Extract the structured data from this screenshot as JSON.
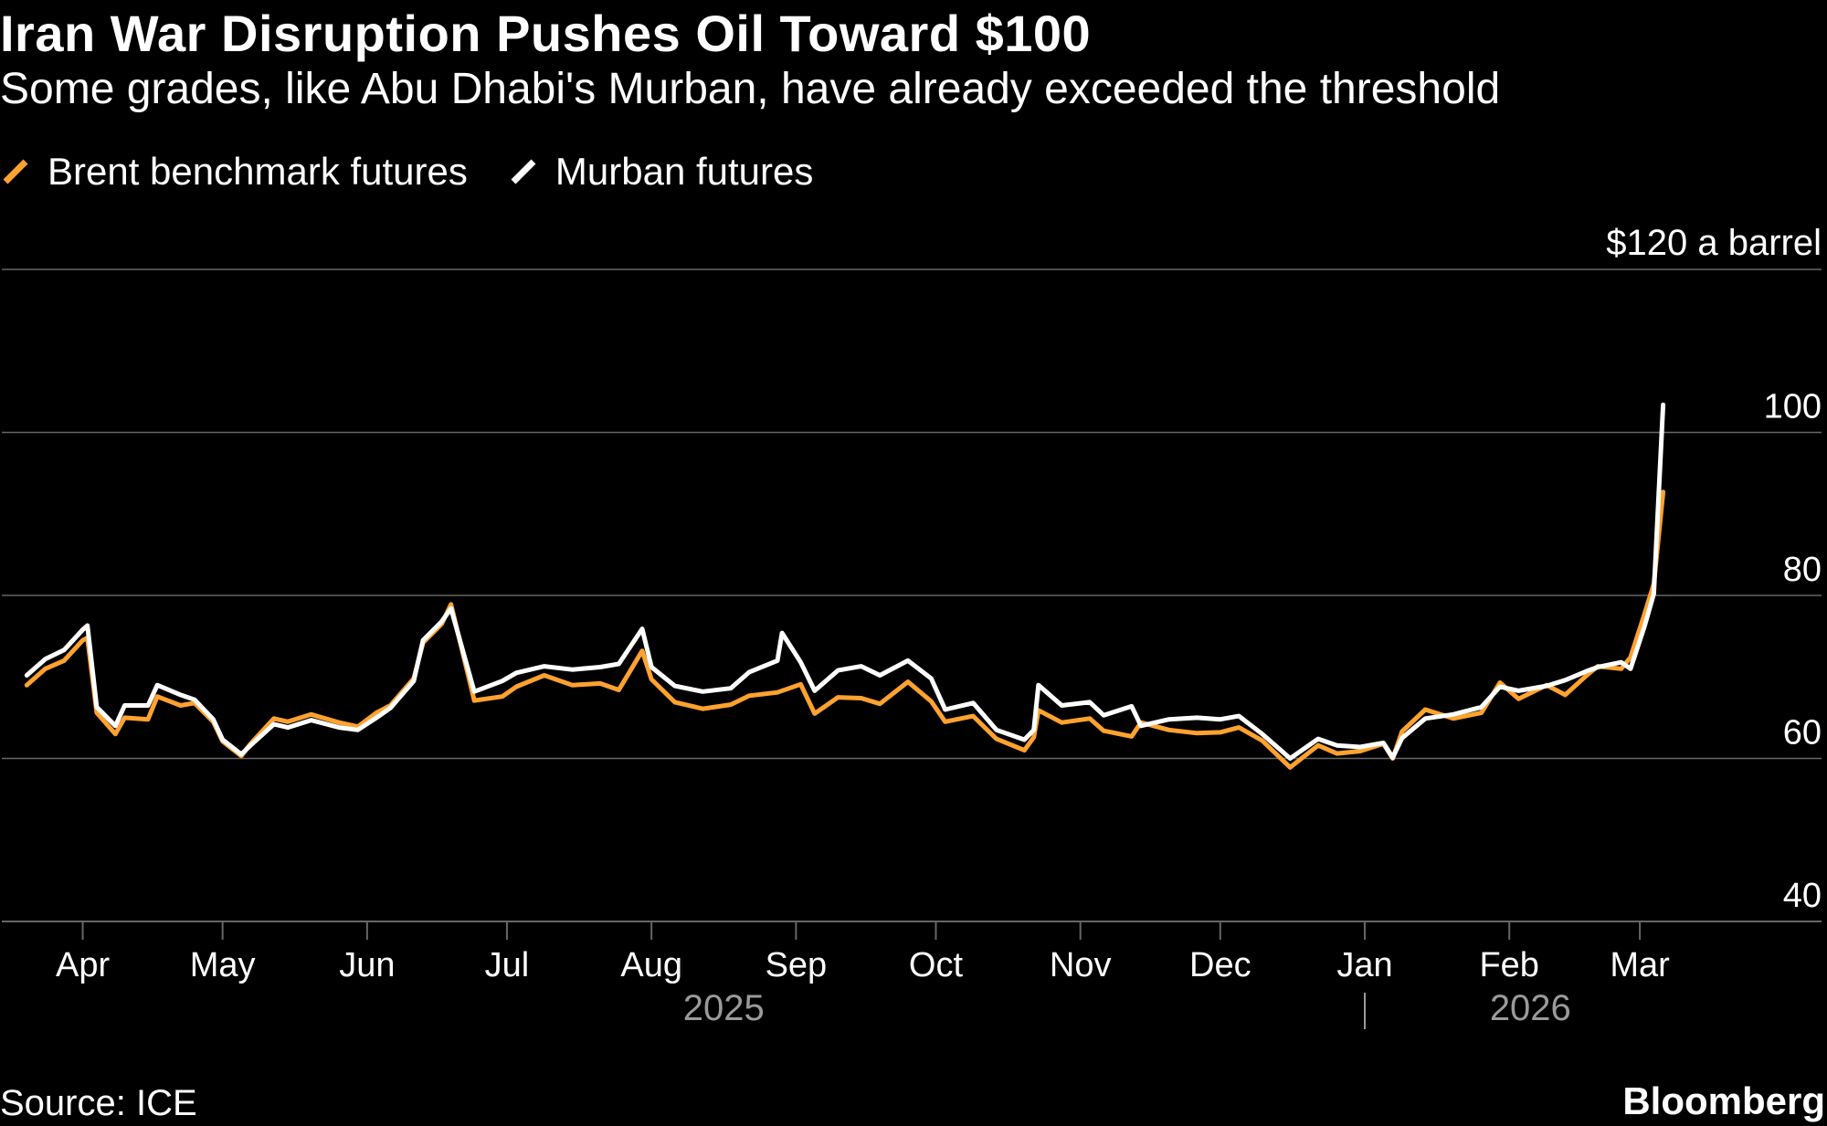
{
  "title": "Iran War Disruption Pushes Oil Toward $100",
  "subtitle": "Some grades, like Abu Dhabi's Murban, have already exceeded the threshold",
  "source": "Source: ICE",
  "brand": "Bloomberg",
  "colors": {
    "background": "#000000",
    "brent": "#ffa22e",
    "murban": "#ffffff",
    "grid": "#666666",
    "year_label": "#9a9a9a"
  },
  "chart_data": {
    "type": "line",
    "y_unit_label": "$120 a barrel",
    "ylim": [
      40,
      120
    ],
    "y_ticks": [
      40,
      60,
      80,
      100,
      120
    ],
    "y_tick_labels": [
      "40",
      "60",
      "80",
      "100",
      "$120 a barrel"
    ],
    "xlim": [
      "2025-03-17",
      "2026-03-29"
    ],
    "x_ticks": [
      "2025-04-01",
      "2025-05-01",
      "2025-06-01",
      "2025-07-01",
      "2025-08-01",
      "2025-09-01",
      "2025-10-01",
      "2025-11-01",
      "2025-12-01",
      "2026-01-01",
      "2026-02-01",
      "2026-03-01"
    ],
    "x_tick_labels": [
      "Apr",
      "May",
      "Jun",
      "Jul",
      "Aug",
      "Sep",
      "Oct",
      "Nov",
      "Dec",
      "Jan",
      "Feb",
      "Mar"
    ],
    "year_labels": [
      "2025",
      "2026"
    ],
    "grid": "horizontal",
    "legend_position": "top-left",
    "series": [
      {
        "name": "Brent benchmark futures",
        "color": "#ffa22e",
        "points": [
          [
            "2025-03-20",
            69.0
          ],
          [
            "2025-03-24",
            71.0
          ],
          [
            "2025-03-28",
            72.0
          ],
          [
            "2025-04-01",
            74.5
          ],
          [
            "2025-04-02",
            74.8
          ],
          [
            "2025-04-04",
            65.6
          ],
          [
            "2025-04-08",
            63.0
          ],
          [
            "2025-04-10",
            65.0
          ],
          [
            "2025-04-15",
            64.8
          ],
          [
            "2025-04-17",
            67.6
          ],
          [
            "2025-04-22",
            66.5
          ],
          [
            "2025-04-25",
            66.8
          ],
          [
            "2025-04-29",
            64.5
          ],
          [
            "2025-05-01",
            62.1
          ],
          [
            "2025-05-05",
            60.3
          ],
          [
            "2025-05-07",
            61.8
          ],
          [
            "2025-05-12",
            64.9
          ],
          [
            "2025-05-15",
            64.5
          ],
          [
            "2025-05-20",
            65.4
          ],
          [
            "2025-05-26",
            64.4
          ],
          [
            "2025-05-30",
            63.9
          ],
          [
            "2025-06-03",
            65.6
          ],
          [
            "2025-06-06",
            66.5
          ],
          [
            "2025-06-11",
            69.8
          ],
          [
            "2025-06-13",
            74.2
          ],
          [
            "2025-06-17",
            76.5
          ],
          [
            "2025-06-19",
            78.9
          ],
          [
            "2025-06-24",
            67.1
          ],
          [
            "2025-06-30",
            67.6
          ],
          [
            "2025-07-03",
            68.8
          ],
          [
            "2025-07-09",
            70.2
          ],
          [
            "2025-07-15",
            69.0
          ],
          [
            "2025-07-21",
            69.2
          ],
          [
            "2025-07-25",
            68.4
          ],
          [
            "2025-07-30",
            73.2
          ],
          [
            "2025-08-01",
            69.7
          ],
          [
            "2025-08-06",
            66.9
          ],
          [
            "2025-08-12",
            66.1
          ],
          [
            "2025-08-18",
            66.6
          ],
          [
            "2025-08-22",
            67.7
          ],
          [
            "2025-08-28",
            68.1
          ],
          [
            "2025-09-02",
            69.1
          ],
          [
            "2025-09-05",
            65.5
          ],
          [
            "2025-09-10",
            67.5
          ],
          [
            "2025-09-15",
            67.4
          ],
          [
            "2025-09-19",
            66.7
          ],
          [
            "2025-09-25",
            69.4
          ],
          [
            "2025-09-30",
            67.0
          ],
          [
            "2025-10-03",
            64.5
          ],
          [
            "2025-10-09",
            65.2
          ],
          [
            "2025-10-14",
            62.4
          ],
          [
            "2025-10-20",
            61.0
          ],
          [
            "2025-10-22",
            62.6
          ],
          [
            "2025-10-23",
            65.9
          ],
          [
            "2025-10-28",
            64.4
          ],
          [
            "2025-11-03",
            64.9
          ],
          [
            "2025-11-06",
            63.4
          ],
          [
            "2025-11-12",
            62.7
          ],
          [
            "2025-11-14",
            64.4
          ],
          [
            "2025-11-20",
            63.5
          ],
          [
            "2025-11-26",
            63.1
          ],
          [
            "2025-12-01",
            63.2
          ],
          [
            "2025-12-05",
            63.8
          ],
          [
            "2025-12-10",
            62.2
          ],
          [
            "2025-12-16",
            58.9
          ],
          [
            "2025-12-22",
            61.6
          ],
          [
            "2025-12-26",
            60.6
          ],
          [
            "2025-12-31",
            60.9
          ],
          [
            "2026-01-05",
            61.8
          ],
          [
            "2026-01-07",
            60.0
          ],
          [
            "2026-01-09",
            63.3
          ],
          [
            "2026-01-14",
            66.0
          ],
          [
            "2026-01-20",
            64.9
          ],
          [
            "2026-01-26",
            65.6
          ],
          [
            "2026-01-30",
            69.3
          ],
          [
            "2026-02-03",
            67.3
          ],
          [
            "2026-02-09",
            69.0
          ],
          [
            "2026-02-13",
            67.8
          ],
          [
            "2026-02-18",
            70.4
          ],
          [
            "2026-02-20",
            71.3
          ],
          [
            "2026-02-25",
            71.0
          ],
          [
            "2026-02-27",
            72.4
          ],
          [
            "2026-03-02",
            77.7
          ],
          [
            "2026-03-04",
            81.4
          ],
          [
            "2026-03-06",
            92.7
          ]
        ]
      },
      {
        "name": "Murban futures",
        "color": "#ffffff",
        "points": [
          [
            "2025-03-20",
            70.2
          ],
          [
            "2025-03-24",
            72.2
          ],
          [
            "2025-03-28",
            73.3
          ],
          [
            "2025-04-01",
            75.8
          ],
          [
            "2025-04-02",
            76.3
          ],
          [
            "2025-04-04",
            66.3
          ],
          [
            "2025-04-08",
            64.0
          ],
          [
            "2025-04-10",
            66.5
          ],
          [
            "2025-04-15",
            66.5
          ],
          [
            "2025-04-17",
            69.0
          ],
          [
            "2025-04-22",
            67.8
          ],
          [
            "2025-04-25",
            67.2
          ],
          [
            "2025-04-29",
            64.8
          ],
          [
            "2025-05-01",
            62.3
          ],
          [
            "2025-05-05",
            60.5
          ],
          [
            "2025-05-07",
            61.6
          ],
          [
            "2025-05-12",
            64.2
          ],
          [
            "2025-05-15",
            63.8
          ],
          [
            "2025-05-20",
            64.7
          ],
          [
            "2025-05-26",
            63.8
          ],
          [
            "2025-05-30",
            63.5
          ],
          [
            "2025-06-03",
            65.0
          ],
          [
            "2025-06-06",
            66.2
          ],
          [
            "2025-06-11",
            69.5
          ],
          [
            "2025-06-13",
            74.5
          ],
          [
            "2025-06-17",
            76.8
          ],
          [
            "2025-06-19",
            78.4
          ],
          [
            "2025-06-24",
            68.2
          ],
          [
            "2025-06-30",
            69.5
          ],
          [
            "2025-07-03",
            70.5
          ],
          [
            "2025-07-09",
            71.3
          ],
          [
            "2025-07-15",
            70.9
          ],
          [
            "2025-07-21",
            71.2
          ],
          [
            "2025-07-25",
            71.6
          ],
          [
            "2025-07-30",
            75.9
          ],
          [
            "2025-08-01",
            71.2
          ],
          [
            "2025-08-06",
            68.9
          ],
          [
            "2025-08-12",
            68.2
          ],
          [
            "2025-08-18",
            68.6
          ],
          [
            "2025-08-22",
            70.6
          ],
          [
            "2025-08-28",
            72.0
          ],
          [
            "2025-08-29",
            75.4
          ],
          [
            "2025-09-02",
            71.8
          ],
          [
            "2025-09-05",
            68.3
          ],
          [
            "2025-09-10",
            70.8
          ],
          [
            "2025-09-15",
            71.3
          ],
          [
            "2025-09-19",
            70.2
          ],
          [
            "2025-09-25",
            72.0
          ],
          [
            "2025-09-30",
            69.8
          ],
          [
            "2025-10-03",
            66.0
          ],
          [
            "2025-10-09",
            66.8
          ],
          [
            "2025-10-14",
            63.5
          ],
          [
            "2025-10-20",
            62.3
          ],
          [
            "2025-10-22",
            63.5
          ],
          [
            "2025-10-23",
            69.0
          ],
          [
            "2025-10-28",
            66.5
          ],
          [
            "2025-11-03",
            66.9
          ],
          [
            "2025-11-06",
            65.3
          ],
          [
            "2025-11-12",
            66.4
          ],
          [
            "2025-11-14",
            64.0
          ],
          [
            "2025-11-20",
            64.8
          ],
          [
            "2025-11-26",
            65.0
          ],
          [
            "2025-12-01",
            64.8
          ],
          [
            "2025-12-05",
            65.2
          ],
          [
            "2025-12-10",
            63.0
          ],
          [
            "2025-12-16",
            60.0
          ],
          [
            "2025-12-22",
            62.4
          ],
          [
            "2025-12-26",
            61.6
          ],
          [
            "2025-12-31",
            61.4
          ],
          [
            "2026-01-05",
            61.9
          ],
          [
            "2026-01-07",
            60.1
          ],
          [
            "2026-01-09",
            62.5
          ],
          [
            "2026-01-14",
            64.9
          ],
          [
            "2026-01-20",
            65.4
          ],
          [
            "2026-01-26",
            66.3
          ],
          [
            "2026-01-30",
            68.8
          ],
          [
            "2026-02-03",
            68.3
          ],
          [
            "2026-02-09",
            68.9
          ],
          [
            "2026-02-13",
            69.6
          ],
          [
            "2026-02-18",
            70.8
          ],
          [
            "2026-02-20",
            71.2
          ],
          [
            "2026-02-25",
            71.8
          ],
          [
            "2026-02-27",
            71.0
          ],
          [
            "2026-03-02",
            76.2
          ],
          [
            "2026-03-04",
            80.2
          ],
          [
            "2026-03-06",
            103.4
          ]
        ]
      }
    ]
  }
}
